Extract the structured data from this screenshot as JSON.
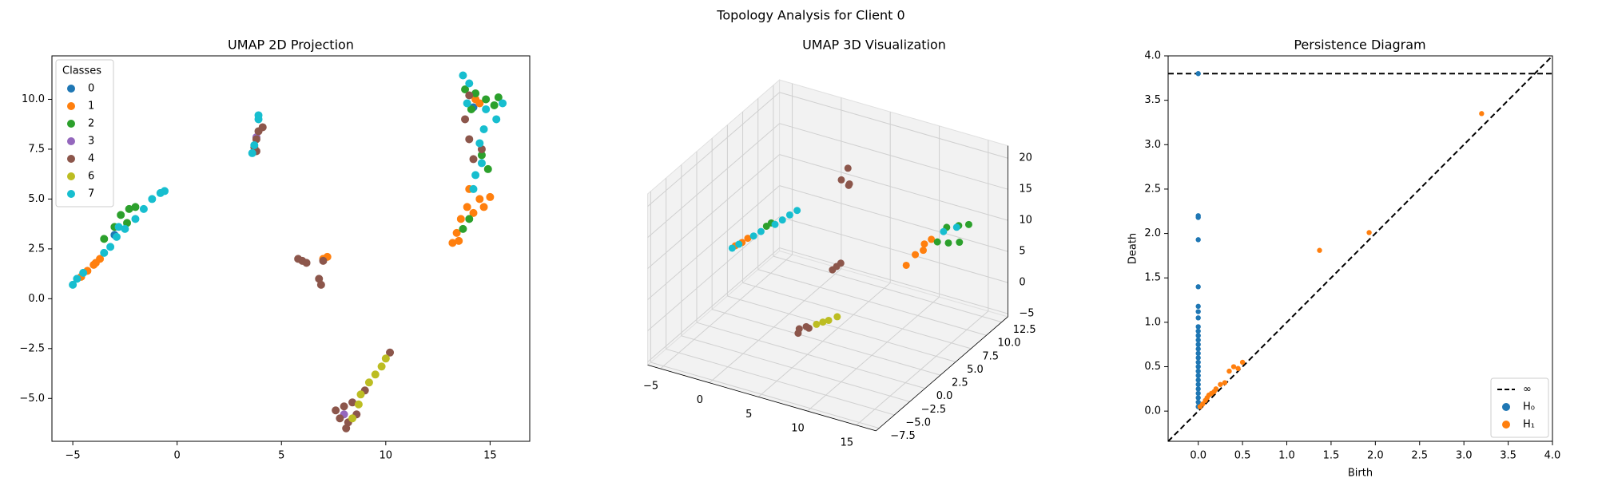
{
  "title": "Topology Analysis for Client 0",
  "chart_data": [
    {
      "type": "scatter",
      "title": "UMAP 2D Projection",
      "xlim": [
        -6,
        16.9
      ],
      "ylim": [
        -7.15,
        12.18
      ],
      "xticks": [
        {
          "value": -5,
          "label": "−5"
        },
        0,
        5,
        10,
        15
      ],
      "yticks": [
        {
          "value": -5,
          "label": "−5.0"
        },
        {
          "value": -2.5,
          "label": "−2.5"
        },
        {
          "value": 0,
          "label": "0.0"
        },
        2.5,
        {
          "value": 5,
          "label": "5.0"
        },
        7.5,
        {
          "value": 10,
          "label": "10.0"
        }
      ],
      "legend": "upper left",
      "legend_title": "Classes",
      "series": [
        {
          "name": "0",
          "color": "#1f77b4",
          "x": [
            14.2,
            -3.0
          ],
          "values": [
            9.6,
            3.2
          ]
        },
        {
          "name": "1",
          "color": "#ff7f0e",
          "x": [
            -4.6,
            -4.3,
            -4.0,
            -3.7,
            -3.9,
            7.0,
            7.2,
            13.2,
            13.4,
            13.6,
            13.9,
            14.0,
            14.5,
            14.7,
            15.0,
            14.2,
            13.5,
            14.3,
            14.5
          ],
          "values": [
            1.1,
            1.4,
            1.7,
            2.0,
            1.8,
            2.0,
            2.1,
            2.8,
            3.3,
            4.0,
            4.6,
            5.5,
            5.0,
            4.6,
            5.1,
            4.3,
            2.9,
            10.0,
            9.8
          ]
        },
        {
          "name": "2",
          "color": "#2ca02c",
          "x": [
            -3.5,
            -3.0,
            -2.7,
            -2.3,
            -2.0,
            -2.4,
            13.8,
            14.3,
            14.8,
            15.2,
            15.4,
            14.1,
            14.6,
            14.9,
            13.7,
            14.0
          ],
          "values": [
            3.0,
            3.6,
            4.2,
            4.5,
            4.6,
            3.8,
            10.5,
            10.3,
            10.0,
            9.7,
            10.1,
            9.5,
            7.2,
            6.5,
            3.5,
            4.0
          ]
        },
        {
          "name": "3",
          "color": "#9467bd",
          "x": [
            8.0,
            3.8
          ],
          "values": [
            -5.8,
            8.1
          ]
        },
        {
          "name": "4",
          "color": "#8c564b",
          "x": [
            3.7,
            3.8,
            3.9,
            4.1,
            3.8,
            5.8,
            6.0,
            6.2,
            6.8,
            6.9,
            7.0,
            7.6,
            7.8,
            8.0,
            8.2,
            8.4,
            8.1,
            9.0,
            10.2,
            8.6,
            13.8,
            14.0,
            14.2,
            14.6,
            14.0
          ],
          "values": [
            7.6,
            8.0,
            8.4,
            8.6,
            7.4,
            2.0,
            1.9,
            1.8,
            1.0,
            0.7,
            1.9,
            -5.6,
            -6.0,
            -5.4,
            -6.2,
            -5.2,
            -6.5,
            -4.6,
            -2.7,
            -5.8,
            9.0,
            8.0,
            7.0,
            7.5,
            10.2
          ]
        },
        {
          "name": "6",
          "color": "#bcbd22",
          "x": [
            8.8,
            9.2,
            9.5,
            9.8,
            10.0,
            8.4,
            8.7
          ],
          "values": [
            -4.8,
            -4.2,
            -3.8,
            -3.4,
            -3.0,
            -6.0,
            -5.3
          ]
        },
        {
          "name": "7",
          "color": "#17becf",
          "x": [
            -5.0,
            -4.8,
            -4.5,
            -3.5,
            -3.2,
            -2.9,
            -2.8,
            -2.5,
            -2.0,
            -1.6,
            -1.2,
            -0.8,
            -0.6,
            3.6,
            3.7,
            3.9,
            3.9,
            13.7,
            14.0,
            14.5,
            14.7,
            14.3,
            14.2,
            14.8,
            15.3,
            15.6,
            13.9,
            14.6
          ],
          "values": [
            0.7,
            1.0,
            1.3,
            2.3,
            2.6,
            3.1,
            3.6,
            3.5,
            4.0,
            4.5,
            5.0,
            5.3,
            5.4,
            7.3,
            7.7,
            9.0,
            9.2,
            11.2,
            10.8,
            7.8,
            8.5,
            6.2,
            5.5,
            9.5,
            9.0,
            9.8,
            9.8,
            6.8
          ]
        }
      ]
    },
    {
      "type": "scatter3d",
      "title": "UMAP 3D Visualization",
      "xlim": [
        -6.3,
        17
      ],
      "ylim": [
        -8,
        13.5
      ],
      "zlim": [
        -5.5,
        22
      ],
      "xticks": [
        {
          "value": -5,
          "label": "−5"
        },
        0,
        5,
        10,
        15
      ],
      "yticks": [
        {
          "value": -7.5,
          "label": "−7.5"
        },
        {
          "value": -5,
          "label": "−5.0"
        },
        {
          "value": -2.5,
          "label": "−2.5"
        },
        {
          "value": 0,
          "label": "0.0"
        },
        2.5,
        {
          "value": 5,
          "label": "5.0"
        },
        7.5,
        {
          "value": 10,
          "label": "10.0"
        },
        12.5
      ],
      "zticks": [
        {
          "value": -5,
          "label": "−5"
        },
        0,
        5,
        10,
        15,
        20
      ],
      "series": [
        {
          "color": "#ff7f0e",
          "x": [
            -4.8,
            -4.3,
            -3.9,
            13.2,
            13.5,
            13.8,
            14.2,
            14.0
          ],
          "y": [
            3.9,
            4.2,
            4.5,
            3,
            4,
            5,
            5.5,
            4.5
          ],
          "values": [
            4.2,
            4.7,
            5.3,
            10,
            11,
            12,
            12.5,
            11.5
          ]
        },
        {
          "color": "#2ca02c",
          "x": [
            -2.5,
            -2.2,
            14.5,
            15.0,
            15.5,
            14.8,
            15.2,
            14.2
          ],
          "y": [
            5.3,
            5.6,
            6,
            7,
            8,
            9,
            10,
            8
          ],
          "values": [
            7.2,
            7.6,
            11.8,
            11,
            10.5,
            12,
            11.5,
            12.3
          ]
        },
        {
          "color": "#8c564b",
          "x": [
            3.7,
            4.0,
            4.2,
            4.4,
            6.3,
            6.6,
            6.9,
            7.6,
            8.0,
            8.4,
            7.8
          ],
          "y": [
            7.6,
            8.2,
            8.0,
            7.8,
            2,
            2.2,
            2.4,
            -5.5,
            -5,
            -5.2,
            -6
          ],
          "values": [
            15.5,
            17,
            14.5,
            15,
            7,
            7.5,
            8,
            4.5,
            4.6,
            4.7,
            4.3
          ]
        },
        {
          "color": "#bcbd22",
          "x": [
            8.8,
            9.2,
            9.6,
            10.1
          ],
          "y": [
            -4.6,
            -4.2,
            -3.9,
            -3.3
          ],
          "values": [
            5,
            5.2,
            5.4,
            5.7
          ]
        },
        {
          "color": "#17becf",
          "x": [
            -5,
            -4.5,
            -3.5,
            -3,
            -2,
            -1.5,
            -1,
            -0.5,
            14.5,
            14.9
          ],
          "y": [
            3.7,
            4.0,
            4.8,
            5.2,
            5.9,
            6.3,
            6.7,
            7.1,
            7,
            8.5
          ],
          "values": [
            3.9,
            4.5,
            5.6,
            6.2,
            7.2,
            7.8,
            8.5,
            9.1,
            12.6,
            12.2
          ]
        }
      ]
    },
    {
      "type": "persistence",
      "title": "Persistence Diagram",
      "xlabel": "Birth",
      "ylabel": "Death",
      "xlim": [
        -0.34,
        4.0
      ],
      "ylim": [
        -0.34,
        4.0
      ],
      "xticks": [
        {
          "value": 0,
          "label": "0.0"
        },
        0.5,
        {
          "value": 1,
          "label": "1.0"
        },
        1.5,
        {
          "value": 2,
          "label": "2.0"
        },
        2.5,
        {
          "value": 3,
          "label": "3.0"
        },
        3.5,
        {
          "value": 4,
          "label": "4.0"
        }
      ],
      "yticks": [
        {
          "value": 0,
          "label": "0.0"
        },
        0.5,
        {
          "value": 1,
          "label": "1.0"
        },
        1.5,
        {
          "value": 2,
          "label": "2.0"
        },
        2.5,
        {
          "value": 3,
          "label": "3.0"
        },
        3.5,
        {
          "value": 4,
          "label": "4.0"
        }
      ],
      "infinity": {
        "value": 3.8,
        "label": "∞"
      },
      "legend": "lower right",
      "series": [
        {
          "name": "H₀",
          "color": "#1f77b4",
          "x": [
            0,
            0,
            0,
            0,
            0,
            0,
            0,
            0,
            0,
            0,
            0,
            0,
            0,
            0,
            0,
            0,
            0,
            0,
            0,
            0,
            0,
            0,
            0,
            0,
            0,
            0,
            0
          ],
          "values": [
            3.8,
            2.2,
            2.18,
            1.93,
            1.4,
            1.18,
            1.12,
            1.05,
            0.95,
            0.9,
            0.85,
            0.8,
            0.75,
            0.7,
            0.65,
            0.6,
            0.55,
            0.5,
            0.45,
            0.4,
            0.35,
            0.3,
            0.25,
            0.2,
            0.15,
            0.1,
            0.05
          ]
        },
        {
          "name": "H₁",
          "color": "#ff7f0e",
          "x": [
            0.02,
            0.05,
            0.08,
            0.1,
            0.12,
            0.15,
            0.18,
            0.2,
            0.25,
            0.3,
            0.35,
            0.4,
            0.45,
            0.5,
            1.37,
            1.93,
            3.2
          ],
          "values": [
            0.05,
            0.08,
            0.12,
            0.15,
            0.18,
            0.2,
            0.22,
            0.25,
            0.3,
            0.32,
            0.45,
            0.5,
            0.48,
            0.55,
            1.81,
            2.01,
            3.35
          ]
        }
      ]
    }
  ]
}
